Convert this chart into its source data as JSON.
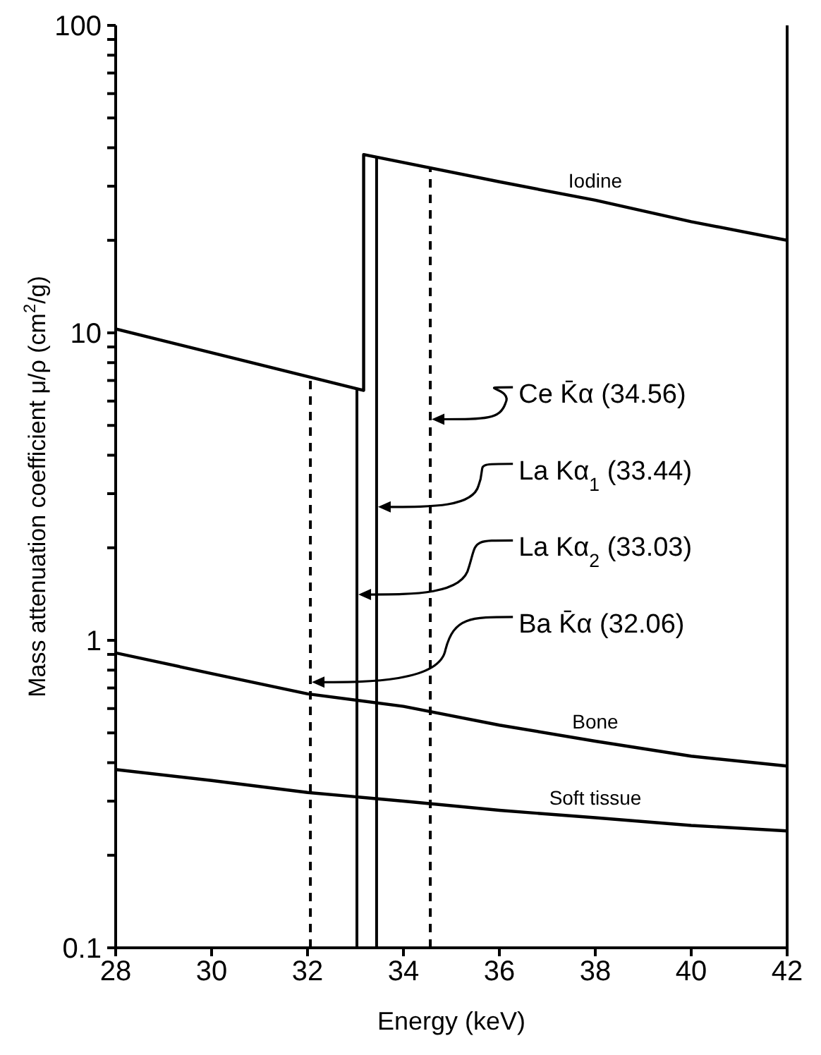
{
  "chart_data": {
    "type": "line",
    "xlabel": "Energy (keV)",
    "ylabel": "Mass attenuation coefficient μ/ρ (cm$^{2}$/g)",
    "log": "y",
    "grid": false,
    "legend": false,
    "marker": "none",
    "line_style": "solid",
    "xlim": [
      28,
      42
    ],
    "xticks": [
      28,
      30,
      32,
      34,
      36,
      38,
      40,
      42
    ],
    "ylim": [
      0.1,
      100
    ],
    "yticks": [
      0.1,
      {
        "value": 0.2,
        "label": null
      },
      {
        "value": 0.3,
        "label": null
      },
      {
        "value": 0.4,
        "label": null
      },
      {
        "value": 0.5,
        "label": null
      },
      {
        "value": 0.6,
        "label": null
      },
      {
        "value": 0.7,
        "label": null
      },
      {
        "value": 0.8,
        "label": null
      },
      {
        "value": 0.9,
        "label": null
      },
      1,
      {
        "value": 2,
        "label": null
      },
      {
        "value": 3,
        "label": null
      },
      {
        "value": 4,
        "label": null
      },
      {
        "value": 5,
        "label": null
      },
      {
        "value": 6,
        "label": null
      },
      {
        "value": 7,
        "label": null
      },
      {
        "value": 8,
        "label": null
      },
      {
        "value": 9,
        "label": null
      },
      10,
      {
        "value": 20,
        "label": null
      },
      {
        "value": 30,
        "label": null
      },
      {
        "value": 40,
        "label": null
      },
      {
        "value": 50,
        "label": null
      },
      {
        "value": 60,
        "label": null
      },
      {
        "value": 70,
        "label": null
      },
      {
        "value": 80,
        "label": null
      },
      {
        "value": 90,
        "label": null
      },
      100
    ],
    "series": [
      {
        "name": "Iodine",
        "color": "#000000",
        "x": [
          28,
          33.17,
          33.17,
          36,
          38,
          40,
          42
        ],
        "values": [
          10.3,
          6.5,
          38,
          31,
          27,
          23,
          20
        ]
      },
      {
        "name": "Bone",
        "color": "#000000",
        "x": [
          28,
          30,
          32,
          34,
          36,
          38,
          40,
          42
        ],
        "values": [
          0.91,
          0.78,
          0.67,
          0.61,
          0.53,
          0.47,
          0.42,
          0.39
        ]
      },
      {
        "name": "Soft tissue",
        "color": "#000000",
        "x": [
          28,
          30,
          32,
          34,
          36,
          38,
          40,
          42
        ],
        "values": [
          0.38,
          0.35,
          0.32,
          0.3,
          0.28,
          0.265,
          0.25,
          0.24
        ]
      }
    ],
    "ref_lines": [
      {
        "axis": "x",
        "value": 34.56,
        "label": "Ce K̄α (34.56)",
        "line_style": "dashed",
        "color": "#000000"
      },
      {
        "axis": "x",
        "value": 33.44,
        "label": "La Kα$_{1}$ (33.44)",
        "line_style": "solid",
        "color": "#000000"
      },
      {
        "axis": "x",
        "value": 33.03,
        "label": "La Kα$_{2}$ (33.03)",
        "line_style": "solid",
        "color": "#000000"
      },
      {
        "axis": "x",
        "value": 32.06,
        "label": "Ba K̄α (32.06)",
        "line_style": "dashed",
        "color": "#000000"
      }
    ]
  }
}
